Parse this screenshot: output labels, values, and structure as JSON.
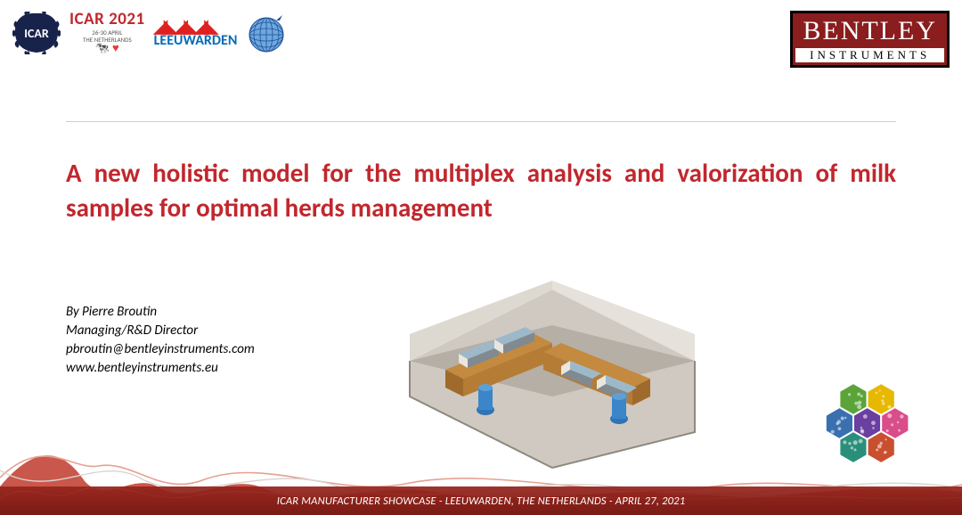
{
  "header": {
    "icar_badge_text": "ICAR",
    "icar2021_title": "ICAR 2021",
    "icar2021_dates": "26-30 APRIL",
    "icar2021_country": "THE NETHERLANDS",
    "leeuwarden_text": "LEEUWARDEN",
    "bentley_top": "BENTLEY",
    "bentley_bottom": "INSTRUMENTS"
  },
  "colors": {
    "title_color": "#c1272d",
    "icar_badge_fill": "#17234a",
    "bentley_bg": "#8a1d1d",
    "divider": "#cfcfcf",
    "footer_gradient_top": "#c1392b",
    "footer_gradient_bottom": "#7d1d15",
    "interbull_blue": "#1c4f9c",
    "lab_wall": "#cfc9c1",
    "lab_floor": "#b6afa6",
    "lab_wood": "#c48a3f",
    "lab_machine": "#9db9c9",
    "lab_pillar": "#2f74b5"
  },
  "typography": {
    "title_fontsize": 29,
    "title_fontweight": 700,
    "author_fontsize": 15,
    "footer_fontsize": 12.5,
    "bentley_top_fontsize": 30,
    "bentley_bot_fontsize": 13
  },
  "title": "A new holistic model for the multiplex analysis and valorization of milk samples for optimal herds management",
  "author": {
    "by_line": "By Pierre Broutin",
    "role": "Managing/R&D Director",
    "email": "pbroutin@bentleyinstruments.com",
    "website": "www.bentleyinstruments.eu"
  },
  "hex_colors": [
    "#5aa43a",
    "#e6b800",
    "#3a6fb0",
    "#6a3fa0",
    "#d94e8a",
    "#2a8f7a",
    "#c94f2e"
  ],
  "footer_text": "ICAR MANUFACTURER SHOWCASE - LEEUWARDEN, THE NETHERLANDS - APRIL 27, 2021",
  "wave": {
    "stroke1": "#d9d4cf",
    "stroke2": "#e6a18f",
    "fill": "#c1392b"
  }
}
